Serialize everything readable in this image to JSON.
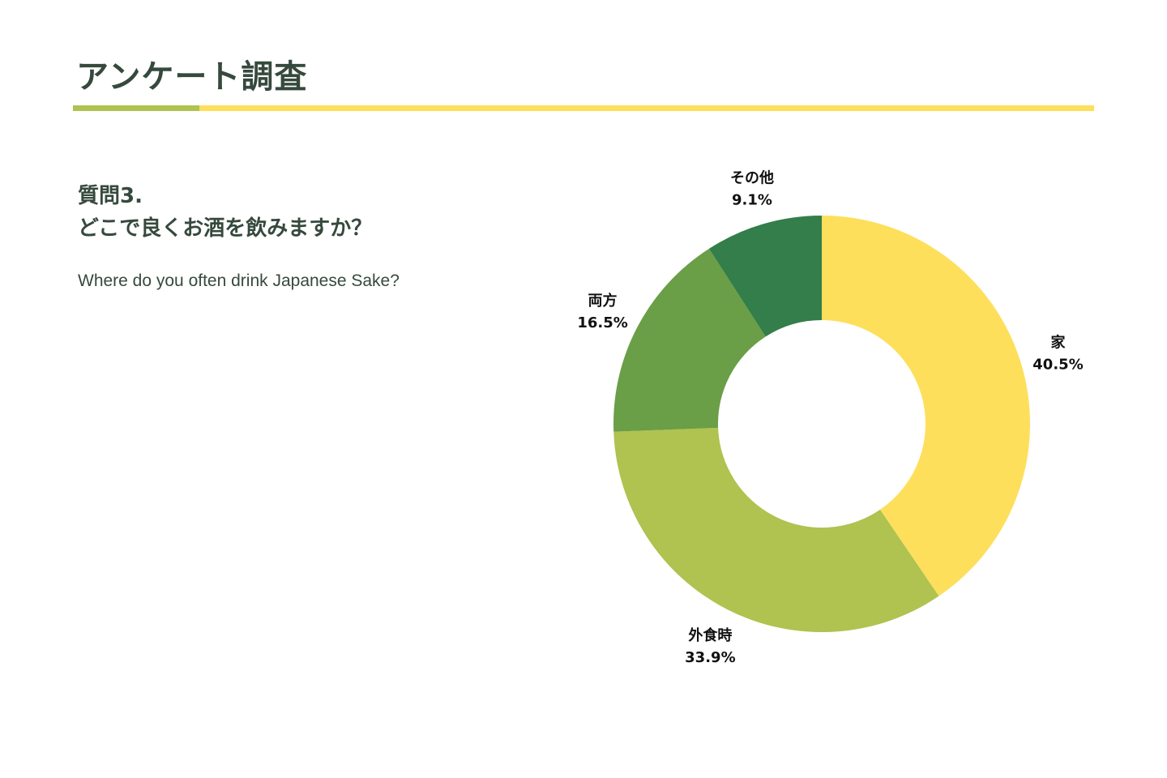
{
  "header": {
    "title": "アンケート調査",
    "accent_color": "#b0c24f",
    "line_color": "#fddf5b"
  },
  "question": {
    "number": "質問3.",
    "text_ja": "どこで良くお酒を飲みますか？",
    "text_en": "Where do you often drink Japanese Sake?"
  },
  "chart_data": {
    "type": "pie",
    "style": "donut",
    "title": "",
    "categories": [
      "家",
      "外食時",
      "両方",
      "その他"
    ],
    "values": [
      40.5,
      33.9,
      16.5,
      9.1
    ],
    "value_labels": [
      "40.5%",
      "33.9%",
      "16.5%",
      "9.1%"
    ],
    "colors": [
      "#fddf5b",
      "#b0c24f",
      "#6a9e47",
      "#337e4b"
    ],
    "start_angle": "12 o'clock",
    "direction": "clockwise",
    "legend": "none",
    "labels": "outside"
  }
}
